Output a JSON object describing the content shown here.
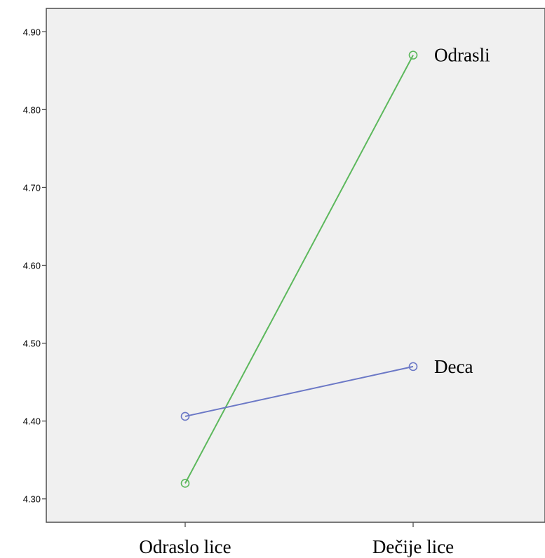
{
  "chart_data": {
    "type": "line",
    "categories": [
      "Odraslo lice",
      "Dečije lice"
    ],
    "series": [
      {
        "name": "Odrasli",
        "values": [
          4.32,
          4.87
        ],
        "color": "#5cb85c"
      },
      {
        "name": "Deca",
        "values": [
          4.406,
          4.47
        ],
        "color": "#6b78c6"
      }
    ],
    "yticks": [
      "4.30",
      "4.40",
      "4.50",
      "4.60",
      "4.70",
      "4.80",
      "4.90"
    ],
    "ylim": [
      4.27,
      4.93
    ],
    "grid": false,
    "legend": "none",
    "plot_background": "#f0f0f0",
    "title": "",
    "xlabel": "",
    "ylabel": ""
  }
}
